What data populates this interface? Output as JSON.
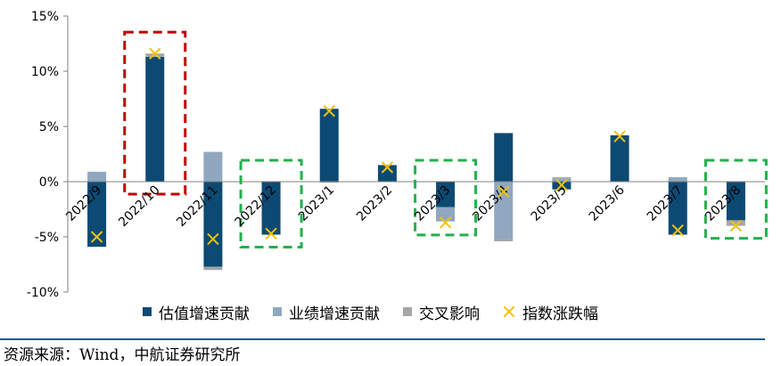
{
  "chart_data": {
    "type": "bar",
    "stacked": true,
    "categories": [
      "2022/9",
      "2022/10",
      "2022/11",
      "2022/12",
      "2023/1",
      "2023/2",
      "2023/3",
      "2023/4",
      "2023/5",
      "2023/6",
      "2023/7",
      "2023/8"
    ],
    "series": [
      {
        "name": "估值增速贡献",
        "color": "#0d4a73",
        "values": [
          -5.9,
          11.3,
          -7.7,
          -4.8,
          6.6,
          1.5,
          -2.3,
          4.4,
          -0.7,
          4.2,
          -4.8,
          -3.5
        ]
      },
      {
        "name": "业绩增速贡献",
        "color": "#8fa8c0",
        "values": [
          0.9,
          0.0,
          2.7,
          0.0,
          0.0,
          0.0,
          -1.3,
          -5.2,
          0.3,
          0.0,
          0.4,
          0.0
        ]
      },
      {
        "name": "交叉影响",
        "color": "#a6a6a6",
        "values": [
          0.0,
          0.3,
          -0.3,
          0.0,
          -0.1,
          0.0,
          0.0,
          -0.2,
          0.1,
          0.0,
          0.0,
          -0.5
        ]
      }
    ],
    "markers": {
      "name": "指数涨跌幅",
      "color": "#f0c20a",
      "values": [
        -5.0,
        11.6,
        -5.2,
        -4.7,
        6.4,
        1.3,
        -3.7,
        -0.9,
        -0.3,
        4.1,
        -4.4,
        -4.0
      ]
    },
    "ylim": [
      -10,
      15
    ],
    "yticks": [
      -10,
      -5,
      0,
      5,
      10,
      15
    ],
    "ytick_labels": [
      "-10%",
      "-5%",
      "0%",
      "5%",
      "10%",
      "15%"
    ],
    "highlights": [
      {
        "category": "2022/10",
        "color": "#c00000"
      },
      {
        "category": "2022/12",
        "color": "#22b14c"
      },
      {
        "category": "2023/3",
        "color": "#22b14c"
      },
      {
        "category": "2023/8",
        "color": "#22b14c"
      }
    ],
    "legend_position": "bottom"
  },
  "legend": {
    "items": [
      {
        "label": "估值增速贡献",
        "color": "#0d4a73",
        "kind": "box"
      },
      {
        "label": "业绩增速贡献",
        "color": "#8fa8c0",
        "kind": "box"
      },
      {
        "label": "交叉影响",
        "color": "#a6a6a6",
        "kind": "box"
      },
      {
        "label": "指数涨跌幅",
        "color": "#f0c20a",
        "kind": "cross"
      }
    ]
  },
  "source": "资源来源：Wind，中航证券研究所"
}
